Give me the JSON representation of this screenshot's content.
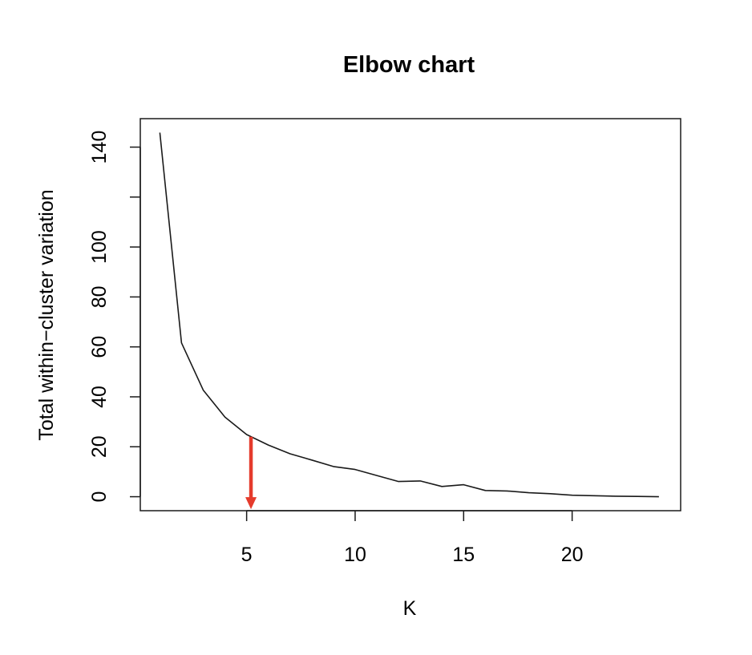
{
  "chart_data": {
    "type": "line",
    "title": "Elbow chart",
    "xlabel": "K",
    "ylabel": "Total within−cluster variation",
    "x_ticks": [
      5,
      10,
      15,
      20
    ],
    "y_ticks": [
      0,
      20,
      40,
      60,
      80,
      100,
      140
    ],
    "y_tick_marks": [
      0,
      20,
      40,
      60,
      80,
      100,
      120,
      140
    ],
    "xlim": [
      0.1,
      25.0
    ],
    "ylim": [
      -5.6,
      151.4
    ],
    "grid": false,
    "series": [
      {
        "x": [
          1,
          2,
          3,
          4,
          5,
          6,
          7,
          8,
          9,
          10,
          11,
          12,
          13,
          14,
          15,
          16,
          17,
          18,
          19,
          20,
          21,
          22,
          23,
          24
        ],
        "y": [
          145.8,
          61.6,
          42.7,
          31.9,
          24.9,
          20.7,
          17.2,
          14.7,
          12.1,
          10.9,
          8.5,
          6.1,
          6.3,
          4.1,
          4.8,
          2.5,
          2.3,
          1.6,
          1.2,
          0.6,
          0.4,
          0.2,
          0.1,
          0.0
        ],
        "color": "#1a1a1a"
      }
    ],
    "annotations": [
      {
        "type": "arrow",
        "color": "#e53b2c",
        "x": 5.2,
        "y_from": 24.0,
        "y_to": -5.0
      }
    ]
  }
}
